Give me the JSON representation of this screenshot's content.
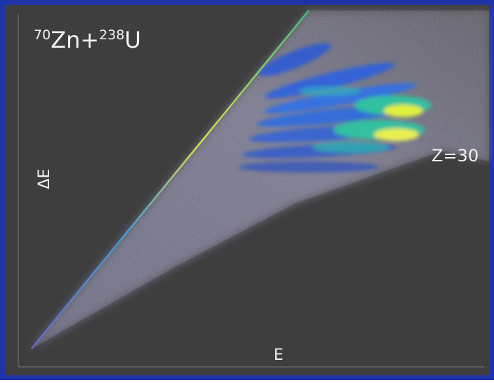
{
  "title": {
    "mass1": "70",
    "elem1": "Zn+",
    "mass2": "238",
    "elem2": "U"
  },
  "axes": {
    "y_label": "ΔE",
    "x_label": "E"
  },
  "annotation": "Z=30"
}
